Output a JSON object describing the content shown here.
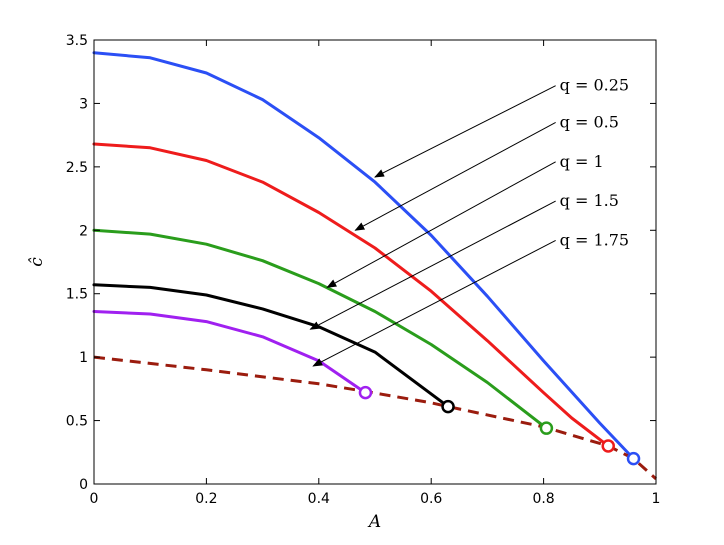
{
  "chart_data": {
    "type": "line",
    "title": "",
    "xlabel": "A",
    "ylabel": "ĉ",
    "xlim": [
      0,
      1
    ],
    "ylim": [
      0,
      3.5
    ],
    "xticks": [
      0,
      0.2,
      0.4,
      0.6,
      0.8,
      1
    ],
    "xtick_labels": [
      "0",
      "0.2",
      "0.4",
      "0.6",
      "0.8",
      "1"
    ],
    "yticks": [
      0,
      0.5,
      1,
      1.5,
      2,
      2.5,
      3,
      3.5
    ],
    "ytick_labels": [
      "0",
      "0.5",
      "1",
      "1.5",
      "2",
      "2.5",
      "3",
      "3.5"
    ],
    "grid": false,
    "series": [
      {
        "name": "q = 0.25",
        "color": "#2b4ff5",
        "x": [
          0,
          0.1,
          0.2,
          0.3,
          0.4,
          0.5,
          0.6,
          0.7,
          0.8,
          0.9,
          0.96
        ],
        "y": [
          3.4,
          3.36,
          3.24,
          3.03,
          2.73,
          2.38,
          1.96,
          1.48,
          0.97,
          0.48,
          0.2
        ],
        "endpoint": [
          0.96,
          0.2
        ]
      },
      {
        "name": "q = 0.5",
        "color": "#ee1c1c",
        "x": [
          0,
          0.1,
          0.2,
          0.3,
          0.4,
          0.5,
          0.6,
          0.7,
          0.8,
          0.85,
          0.915
        ],
        "y": [
          2.68,
          2.65,
          2.55,
          2.38,
          2.14,
          1.86,
          1.52,
          1.13,
          0.72,
          0.52,
          0.3
        ],
        "endpoint": [
          0.915,
          0.3
        ]
      },
      {
        "name": "q = 1",
        "color": "#2a9d1c",
        "x": [
          0,
          0.1,
          0.2,
          0.3,
          0.4,
          0.5,
          0.6,
          0.7,
          0.805
        ],
        "y": [
          2.0,
          1.97,
          1.89,
          1.76,
          1.58,
          1.36,
          1.1,
          0.8,
          0.44
        ],
        "endpoint": [
          0.805,
          0.44
        ]
      },
      {
        "name": "q = 1.5",
        "color": "#000000",
        "x": [
          0,
          0.1,
          0.2,
          0.3,
          0.4,
          0.5,
          0.63
        ],
        "y": [
          1.57,
          1.55,
          1.49,
          1.38,
          1.24,
          1.04,
          0.61
        ],
        "endpoint": [
          0.63,
          0.61
        ]
      },
      {
        "name": "q = 1.75",
        "color": "#a020f0",
        "x": [
          0,
          0.1,
          0.2,
          0.3,
          0.4,
          0.483
        ],
        "y": [
          1.36,
          1.34,
          1.28,
          1.16,
          0.97,
          0.72
        ],
        "endpoint": [
          0.483,
          0.72
        ]
      },
      {
        "name": "",
        "color": "#9b1c0e",
        "dashed": true,
        "x": [
          0,
          0.2,
          0.4,
          0.483,
          0.6,
          0.63,
          0.8,
          0.915,
          0.96,
          1.0
        ],
        "y": [
          1.0,
          0.9,
          0.79,
          0.73,
          0.64,
          0.61,
          0.45,
          0.3,
          0.2,
          0.04
        ]
      }
    ],
    "annotations": [
      {
        "text": "q = 0.25",
        "label_x": 0.825,
        "label_y": 3.14,
        "point_x": 0.5,
        "point_y": 2.42
      },
      {
        "text": "q = 0.5",
        "label_x": 0.825,
        "label_y": 2.85,
        "point_x": 0.465,
        "point_y": 2.0
      },
      {
        "text": "q = 1",
        "label_x": 0.825,
        "label_y": 2.54,
        "point_x": 0.415,
        "point_y": 1.55
      },
      {
        "text": "q = 1.5",
        "label_x": 0.825,
        "label_y": 2.23,
        "point_x": 0.385,
        "point_y": 1.22
      },
      {
        "text": "q = 1.75",
        "label_x": 0.825,
        "label_y": 1.92,
        "point_x": 0.39,
        "point_y": 0.93
      }
    ]
  }
}
